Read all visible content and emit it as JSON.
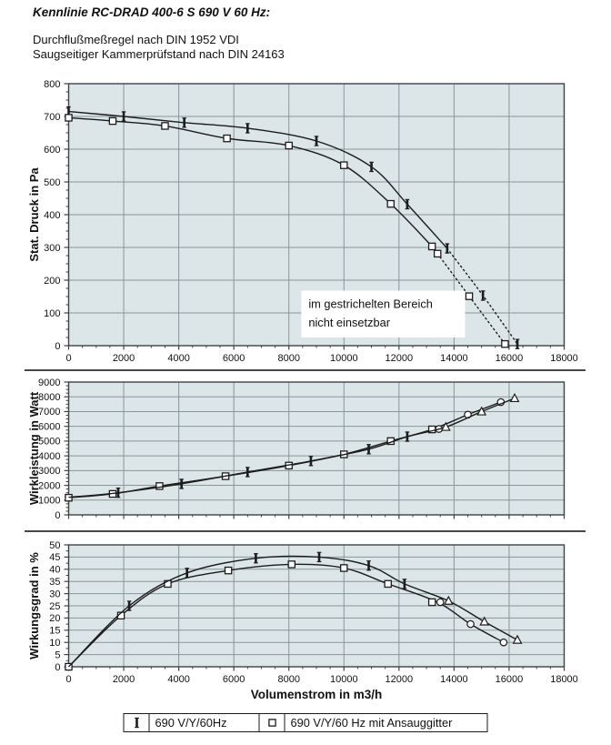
{
  "page": {
    "title": "Kennlinie RC-DRAD 400-6 S 690 V 60 Hz:",
    "subtitle_lines": [
      "Durchflußmeßregel nach DIN 1952 VDI",
      "Saugseitiger Kammerprüfstand nach DIN 24163"
    ]
  },
  "legend": {
    "items": [
      {
        "marker": "tick",
        "label": "690 V/Y/60Hz"
      },
      {
        "marker": "square",
        "label": "690 V/Y/60 Hz mit Ansauggitter"
      }
    ]
  },
  "colors": {
    "plot_bg": "#dce5e7",
    "grid": "#86979a",
    "frame": "#3c4446",
    "curve": "#1c1c1c",
    "text": "#111111",
    "annotation_bg": "#ffffff"
  },
  "chart_data": [
    {
      "type": "line",
      "id": "druck",
      "ylabel": "Stat. Druck in Pa",
      "xlabel": "",
      "xlim": [
        0,
        18000
      ],
      "ylim": [
        0,
        800
      ],
      "xticks": [
        0,
        2000,
        4000,
        6000,
        8000,
        10000,
        12000,
        14000,
        16000,
        18000
      ],
      "xtick_labels": [
        "0",
        "2000",
        "4000",
        "6000",
        "8000",
        "10000",
        "12000",
        "14000",
        "16000",
        "18000"
      ],
      "yticks": [
        0,
        100,
        200,
        300,
        400,
        500,
        600,
        700,
        800
      ],
      "ytick_labels": [
        "0",
        "100",
        "200",
        "300",
        "400",
        "500",
        "600",
        "700",
        "800"
      ],
      "xminor": 500,
      "yminor": 25,
      "grid": true,
      "x_tick_labels_visible": true,
      "annotation": {
        "text_lines": [
          "im gestrichelten Bereich",
          "nicht einsetzbar"
        ],
        "box_data": {
          "x1": 8450,
          "y1": 25,
          "x2": 14400,
          "y2": 168
        }
      },
      "series": [
        {
          "name": "690 V/Y/60Hz",
          "segments": [
            {
              "line": "solid",
              "points": [
                [
                  0,
                  715
                ],
                [
                  2000,
                  700
                ],
                [
                  4200,
                  681
                ],
                [
                  6500,
                  664
                ],
                [
                  9000,
                  625
                ],
                [
                  11000,
                  546
                ],
                [
                  12300,
                  432
                ],
                [
                  13750,
                  297
                ]
              ]
            },
            {
              "line": "dotted",
              "points": [
                [
                  13750,
                  297
                ],
                [
                  15050,
                  153
                ],
                [
                  16300,
                  5
                ]
              ]
            }
          ],
          "markers": [
            {
              "type": "tick",
              "points": [
                [
                  0,
                  715
                ],
                [
                  2000,
                  700
                ],
                [
                  4200,
                  681
                ],
                [
                  6500,
                  664
                ],
                [
                  9000,
                  625
                ],
                [
                  11000,
                  546
                ],
                [
                  12300,
                  432
                ],
                [
                  13750,
                  297
                ],
                [
                  15050,
                  153
                ],
                [
                  16300,
                  5
                ]
              ]
            }
          ]
        },
        {
          "name": "690 V/Y/60 Hz mit Ansauggitter",
          "segments": [
            {
              "line": "solid",
              "points": [
                [
                  0,
                  696
                ],
                [
                  1600,
                  686
                ],
                [
                  3500,
                  671
                ],
                [
                  5750,
                  633
                ],
                [
                  8000,
                  611
                ],
                [
                  10000,
                  551
                ],
                [
                  11700,
                  433
                ],
                [
                  13200,
                  303
                ],
                [
                  13400,
                  281
                ]
              ]
            },
            {
              "line": "dotted",
              "points": [
                [
                  13400,
                  281
                ],
                [
                  14550,
                  151
                ],
                [
                  15850,
                  5
                ]
              ]
            }
          ],
          "markers": [
            {
              "type": "square",
              "points": [
                [
                  0,
                  696
                ],
                [
                  1600,
                  686
                ],
                [
                  3500,
                  671
                ],
                [
                  5750,
                  633
                ],
                [
                  8000,
                  611
                ],
                [
                  10000,
                  551
                ],
                [
                  11700,
                  433
                ],
                [
                  13200,
                  303
                ],
                [
                  13400,
                  281
                ],
                [
                  14550,
                  151
                ],
                [
                  15850,
                  5
                ]
              ]
            }
          ]
        }
      ]
    },
    {
      "type": "line",
      "id": "leistung",
      "ylabel": "Wirkleistung in Watt",
      "xlabel": "",
      "xlim": [
        0,
        18000
      ],
      "ylim": [
        0,
        9000
      ],
      "xticks": [
        0,
        2000,
        4000,
        6000,
        8000,
        10000,
        12000,
        14000,
        16000,
        18000
      ],
      "xtick_labels": [
        "0",
        "2000",
        "4000",
        "6000",
        "8000",
        "10000",
        "12000",
        "14000",
        "16000",
        "18000"
      ],
      "yticks": [
        0,
        1000,
        2000,
        3000,
        4000,
        5000,
        6000,
        7000,
        8000,
        9000
      ],
      "ytick_labels": [
        "0",
        "1000",
        "2000",
        "3000",
        "4000",
        "5000",
        "6000",
        "7000",
        "8000",
        "9000"
      ],
      "xminor": 500,
      "yminor": 250,
      "grid": true,
      "x_tick_labels_visible": false,
      "series": [
        {
          "name": "690 V/Y/60 Hz mit Ansauggitter",
          "segments": [
            {
              "line": "solid",
              "points": [
                [
                  0,
                  1160
                ],
                [
                  1600,
                  1420
                ],
                [
                  3300,
                  1950
                ],
                [
                  5700,
                  2620
                ],
                [
                  8000,
                  3340
                ],
                [
                  10000,
                  4100
                ],
                [
                  11700,
                  5000
                ],
                [
                  13200,
                  5790
                ],
                [
                  14500,
                  6790
                ],
                [
                  15700,
                  7640
                ]
              ]
            }
          ],
          "markers": [
            {
              "type": "square",
              "points": [
                [
                  0,
                  1160
                ],
                [
                  1600,
                  1420
                ],
                [
                  3300,
                  1950
                ],
                [
                  5700,
                  2620
                ],
                [
                  8000,
                  3340
                ],
                [
                  10000,
                  4100
                ],
                [
                  11700,
                  5000
                ],
                [
                  13200,
                  5790
                ]
              ]
            },
            {
              "type": "circle",
              "points": [
                [
                  13450,
                  5820
                ],
                [
                  14500,
                  6790
                ],
                [
                  15700,
                  7640
                ]
              ]
            }
          ]
        },
        {
          "name": "690 V/Y/60Hz",
          "segments": [
            {
              "line": "solid",
              "points": [
                [
                  0,
                  1190
                ],
                [
                  1800,
                  1500
                ],
                [
                  4100,
                  2100
                ],
                [
                  6500,
                  2900
                ],
                [
                  8800,
                  3650
                ],
                [
                  10900,
                  4450
                ],
                [
                  12300,
                  5300
                ],
                [
                  13700,
                  5950
                ],
                [
                  15000,
                  7000
                ],
                [
                  16200,
                  7900
                ]
              ]
            }
          ],
          "markers": [
            {
              "type": "tick",
              "points": [
                [
                  1800,
                  1500
                ],
                [
                  4100,
                  2100
                ],
                [
                  6500,
                  2900
                ],
                [
                  8800,
                  3650
                ],
                [
                  10900,
                  4450
                ],
                [
                  12300,
                  5300
                ]
              ]
            },
            {
              "type": "triangle",
              "points": [
                [
                  13700,
                  5950
                ],
                [
                  15000,
                  7000
                ],
                [
                  16200,
                  7900
                ]
              ]
            }
          ]
        }
      ]
    },
    {
      "type": "line",
      "id": "wirkungsgrad",
      "ylabel": "Wirkungsgrad in %",
      "xlabel": "Volumenstrom in m3/h",
      "xlim": [
        0,
        18000
      ],
      "ylim": [
        0,
        50
      ],
      "xticks": [
        0,
        2000,
        4000,
        6000,
        8000,
        10000,
        12000,
        14000,
        16000,
        18000
      ],
      "xtick_labels": [
        "0",
        "2000",
        "4000",
        "6000",
        "8000",
        "10000",
        "12000",
        "14000",
        "16000",
        "18000"
      ],
      "yticks": [
        0,
        5,
        10,
        15,
        20,
        25,
        30,
        35,
        40,
        45,
        50
      ],
      "ytick_labels": [
        "0",
        "5",
        "10",
        "15",
        "20",
        "25",
        "30",
        "35",
        "40",
        "45",
        "50"
      ],
      "xminor": 500,
      "yminor": 2.5,
      "grid": true,
      "x_tick_labels_visible": true,
      "series": [
        {
          "name": "690 V/Y/60 Hz mit Ansauggitter",
          "segments": [
            {
              "line": "solid",
              "points": [
                [
                  0,
                  0
                ],
                [
                  1900,
                  21
                ],
                [
                  3600,
                  34
                ],
                [
                  5800,
                  39.5
                ],
                [
                  8100,
                  42
                ],
                [
                  10000,
                  40.5
                ],
                [
                  11600,
                  34
                ],
                [
                  13400,
                  26.5
                ],
                [
                  14600,
                  17.5
                ],
                [
                  15800,
                  10
                ]
              ]
            }
          ],
          "markers": [
            {
              "type": "square",
              "points": [
                [
                  0,
                  0
                ],
                [
                  1900,
                  21
                ],
                [
                  3600,
                  34
                ],
                [
                  5800,
                  39.5
                ],
                [
                  8100,
                  42
                ],
                [
                  10000,
                  40.5
                ],
                [
                  11600,
                  34
                ],
                [
                  13200,
                  26.5
                ]
              ]
            },
            {
              "type": "circle",
              "points": [
                [
                  13500,
                  26.5
                ],
                [
                  14600,
                  17.5
                ],
                [
                  15800,
                  10
                ]
              ]
            }
          ]
        },
        {
          "name": "690 V/Y/60Hz",
          "segments": [
            {
              "line": "solid",
              "points": [
                [
                  0,
                  0
                ],
                [
                  2200,
                  25
                ],
                [
                  4300,
                  38.5
                ],
                [
                  6800,
                  44.5
                ],
                [
                  9100,
                  45
                ],
                [
                  10900,
                  41.5
                ],
                [
                  12200,
                  34
                ],
                [
                  13800,
                  27
                ],
                [
                  15100,
                  18.5
                ],
                [
                  16300,
                  11
                ]
              ]
            }
          ],
          "markers": [
            {
              "type": "tick",
              "points": [
                [
                  2200,
                  25
                ],
                [
                  4300,
                  38.5
                ],
                [
                  6800,
                  44.5
                ],
                [
                  9100,
                  45
                ],
                [
                  10900,
                  41.5
                ],
                [
                  12200,
                  34
                ]
              ]
            },
            {
              "type": "triangle",
              "points": [
                [
                  13800,
                  27
                ],
                [
                  15100,
                  18.5
                ],
                [
                  16300,
                  11
                ]
              ]
            }
          ]
        }
      ]
    }
  ]
}
